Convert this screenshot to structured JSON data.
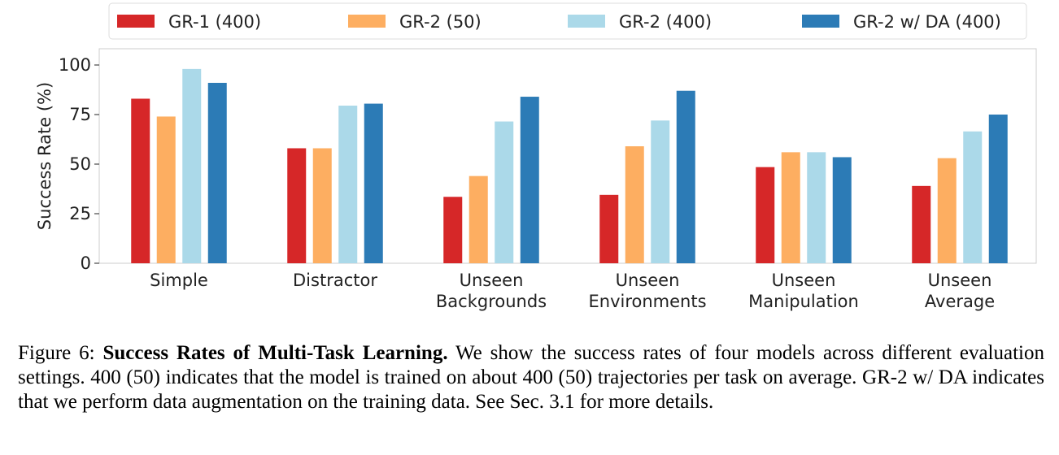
{
  "chart_data": {
    "type": "bar",
    "categories": [
      [
        "Simple"
      ],
      [
        "Distractor"
      ],
      [
        "Unseen",
        "Backgrounds"
      ],
      [
        "Unseen",
        "Environments"
      ],
      [
        "Unseen",
        "Manipulation"
      ],
      [
        "Unseen",
        "Average"
      ]
    ],
    "series": [
      {
        "name": "GR-1 (400)",
        "color": "#d62728",
        "values": [
          83,
          58,
          33.5,
          34.5,
          48.5,
          39
        ]
      },
      {
        "name": "GR-2 (50)",
        "color": "#fdae61",
        "values": [
          74,
          58,
          44,
          59,
          56,
          53
        ]
      },
      {
        "name": "GR-2 (400)",
        "color": "#abd9e9",
        "values": [
          98,
          79.5,
          71.5,
          72,
          56,
          66.5
        ]
      },
      {
        "name": "GR-2 w/ DA (400)",
        "color": "#2c7bb6",
        "values": [
          91,
          80.5,
          84,
          87,
          53.5,
          75
        ]
      }
    ],
    "xlabel": "",
    "ylabel": "Success Rate (%)",
    "ylim": [
      0,
      100
    ],
    "yticks": [
      "0",
      "25",
      "50",
      "75",
      "100"
    ],
    "legend_position": "top"
  },
  "caption": {
    "label": "Figure 6:",
    "title": "Success Rates of Multi-Task Learning.",
    "body": "We show the success rates of four models across different evaluation settings. 400 (50) indicates that the model is trained on about 400 (50) trajectories per task on average. GR-2 w/ DA indicates that we perform data augmentation on the training data. See Sec. 3.1 for more details."
  }
}
